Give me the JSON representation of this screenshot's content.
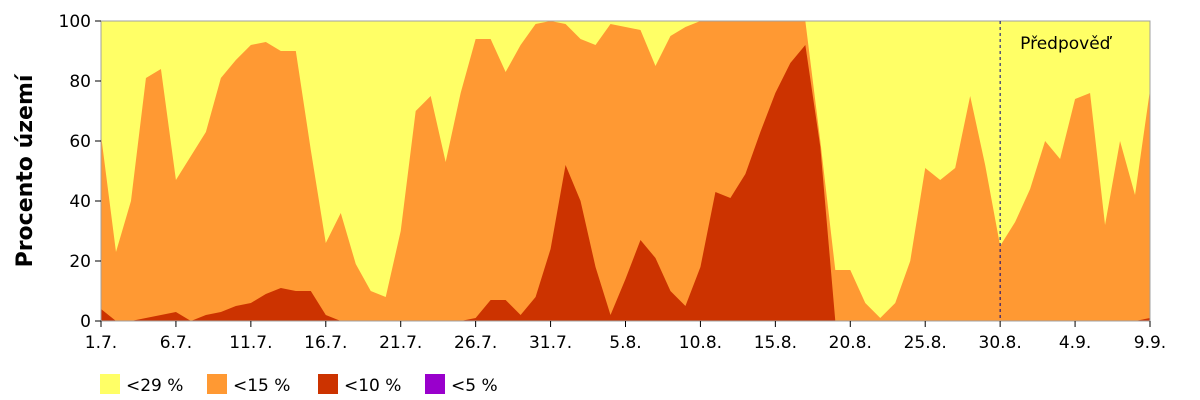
{
  "chart_data": {
    "type": "area",
    "stacked": false,
    "ylabel": "Procento území",
    "ylim": [
      0,
      100
    ],
    "yticks": [
      0,
      20,
      40,
      60,
      80,
      100
    ],
    "xlim": [
      0,
      70
    ],
    "xticks": [
      {
        "x": 0,
        "label": "1.7."
      },
      {
        "x": 5,
        "label": "6.7."
      },
      {
        "x": 10,
        "label": "11.7."
      },
      {
        "x": 15,
        "label": "16.7."
      },
      {
        "x": 20,
        "label": "21.7."
      },
      {
        "x": 25,
        "label": "26.7."
      },
      {
        "x": 30,
        "label": "31.7."
      },
      {
        "x": 35,
        "label": "5.8."
      },
      {
        "x": 40,
        "label": "10.8."
      },
      {
        "x": 45,
        "label": "15.8."
      },
      {
        "x": 50,
        "label": "20.8."
      },
      {
        "x": 55,
        "label": "25.8."
      },
      {
        "x": 60,
        "label": "30.8."
      },
      {
        "x": 65,
        "label": "4.9."
      },
      {
        "x": 70,
        "label": "9.9."
      }
    ],
    "forecast_start_x": 60,
    "forecast_label": "Předpověď",
    "x": [
      0,
      1,
      2,
      3,
      4,
      5,
      6,
      7,
      8,
      9,
      10,
      11,
      12,
      13,
      14,
      15,
      16,
      17,
      18,
      19,
      20,
      21,
      22,
      23,
      24,
      25,
      26,
      27,
      28,
      29,
      30,
      31,
      32,
      33,
      34,
      35,
      36,
      37,
      38,
      39,
      40,
      41,
      42,
      43,
      44,
      45,
      46,
      47,
      48,
      49,
      50,
      51,
      52,
      53,
      54,
      55,
      56,
      57,
      58,
      59,
      60,
      61,
      62,
      63,
      64,
      65,
      66,
      67,
      68,
      69,
      70
    ],
    "series": [
      {
        "name": "<29 %",
        "color": "#ffff66",
        "values": [
          100,
          100,
          100,
          100,
          100,
          100,
          100,
          100,
          100,
          100,
          100,
          100,
          100,
          100,
          100,
          100,
          100,
          100,
          100,
          100,
          100,
          100,
          100,
          100,
          100,
          100,
          100,
          100,
          100,
          100,
          100,
          100,
          100,
          100,
          100,
          100,
          100,
          100,
          100,
          100,
          100,
          100,
          100,
          100,
          100,
          100,
          100,
          100,
          100,
          100,
          100,
          100,
          100,
          100,
          100,
          100,
          100,
          100,
          100,
          100,
          100,
          100,
          100,
          100,
          100,
          100,
          100,
          100,
          100,
          100,
          100
        ]
      },
      {
        "name": "<15 %",
        "color": "#ff9933",
        "values": [
          62,
          23,
          40,
          81,
          84,
          47,
          55,
          63,
          81,
          87,
          92,
          93,
          90,
          90,
          57,
          26,
          36,
          19,
          10,
          8,
          30,
          70,
          75,
          53,
          76,
          94,
          94,
          83,
          92,
          99,
          100,
          99,
          94,
          92,
          99,
          98,
          97,
          85,
          95,
          98,
          100,
          100,
          100,
          100,
          100,
          100,
          100,
          100,
          60,
          17,
          17,
          6,
          1,
          6,
          20,
          51,
          47,
          51,
          75,
          52,
          25,
          33,
          44,
          60,
          54,
          74,
          76,
          32,
          60,
          42,
          77
        ]
      },
      {
        "name": "<10 %",
        "color": "#cc3300",
        "values": [
          4,
          0,
          0,
          1,
          2,
          3,
          0,
          2,
          3,
          5,
          6,
          9,
          11,
          10,
          10,
          2,
          0,
          0,
          0,
          0,
          0,
          0,
          0,
          0,
          0,
          1,
          7,
          7,
          2,
          8,
          24,
          52,
          40,
          18,
          2,
          14,
          27,
          21,
          10,
          5,
          18,
          43,
          41,
          49,
          63,
          76,
          86,
          92,
          58,
          0,
          0,
          0,
          0,
          0,
          0,
          0,
          0,
          0,
          0,
          0,
          0,
          0,
          0,
          0,
          0,
          0,
          0,
          0,
          0,
          0,
          1
        ]
      },
      {
        "name": "<5 %",
        "color": "#9900cc",
        "values": [
          0,
          0,
          0,
          0,
          0,
          0,
          0,
          0,
          0,
          0,
          0,
          0,
          0,
          0,
          0,
          0,
          0,
          0,
          0,
          0,
          0,
          0,
          0,
          0,
          0,
          0,
          0,
          0,
          0,
          0,
          0,
          0,
          0,
          0,
          0,
          0,
          0,
          0,
          0,
          0,
          0,
          0,
          0,
          0,
          0,
          0,
          0,
          0,
          0,
          0,
          0,
          0,
          0,
          0,
          0,
          0,
          0,
          0,
          0,
          0,
          0,
          0,
          0,
          0,
          0,
          0,
          0,
          0,
          0,
          0,
          0
        ]
      }
    ],
    "legend": [
      "<29 %",
      "<15 %",
      "<10 %",
      "<5 %"
    ],
    "legend_position": "bottom-left",
    "grid": false
  }
}
